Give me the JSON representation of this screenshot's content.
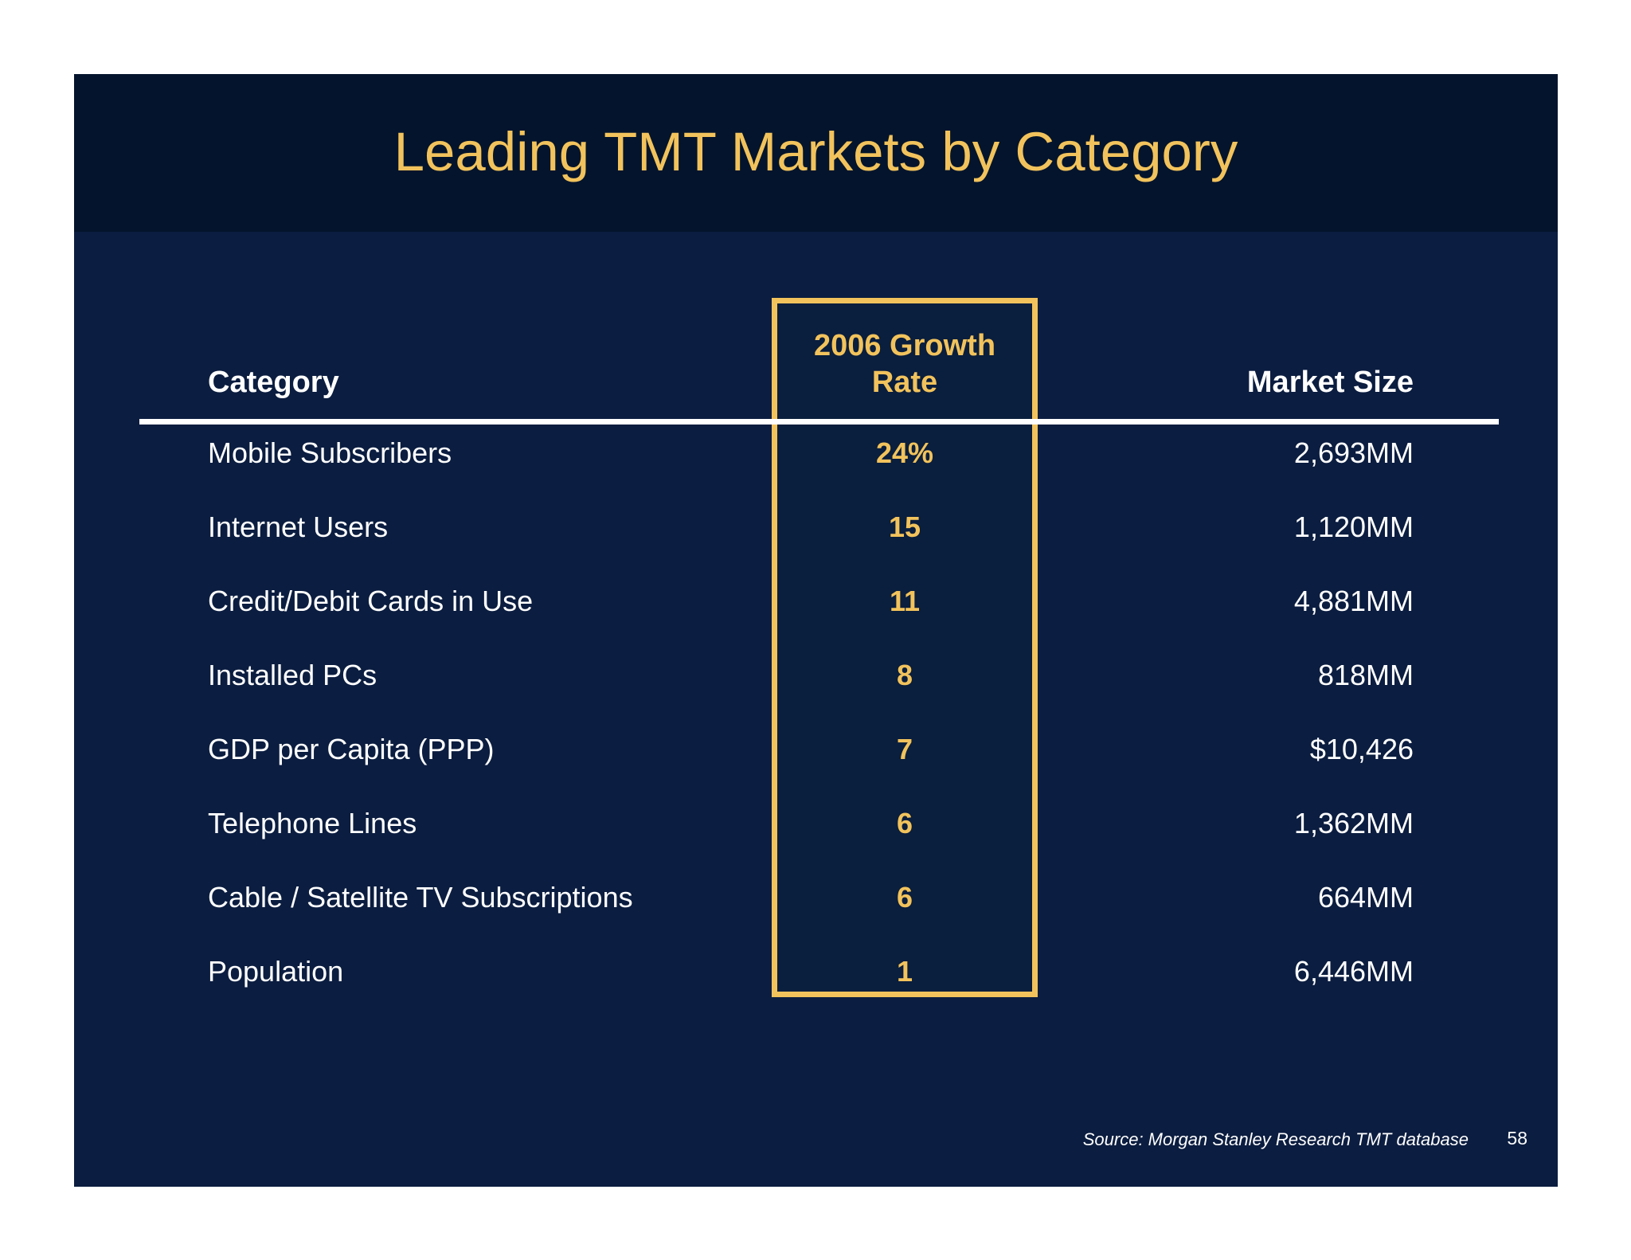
{
  "slide": {
    "title": "Leading TMT Markets by Category",
    "source": "Source: Morgan Stanley Research TMT database",
    "page_number": "58"
  },
  "colors": {
    "background": "#0b1d40",
    "title_band": "#04142c",
    "accent": "#f2c35c",
    "text": "#ffffff"
  },
  "table": {
    "headers": {
      "category": "Category",
      "growth_line1": "2006 Growth",
      "growth_line2": "Rate",
      "market_size": "Market Size"
    },
    "rows": [
      {
        "category": "Mobile Subscribers",
        "growth": "24%",
        "market_size": "2,693MM"
      },
      {
        "category": "Internet Users",
        "growth": "15",
        "market_size": "1,120MM"
      },
      {
        "category": "Credit/Debit Cards in Use",
        "growth": "11",
        "market_size": "4,881MM"
      },
      {
        "category": "Installed PCs",
        "growth": "8",
        "market_size": "818MM"
      },
      {
        "category": "GDP per Capita (PPP)",
        "growth": "7",
        "market_size": "$10,426"
      },
      {
        "category": "Telephone Lines",
        "growth": "6",
        "market_size": "1,362MM"
      },
      {
        "category": "Cable / Satellite TV Subscriptions",
        "growth": "6",
        "market_size": "664MM"
      },
      {
        "category": "Population",
        "growth": "1",
        "market_size": "6,446MM"
      }
    ]
  }
}
